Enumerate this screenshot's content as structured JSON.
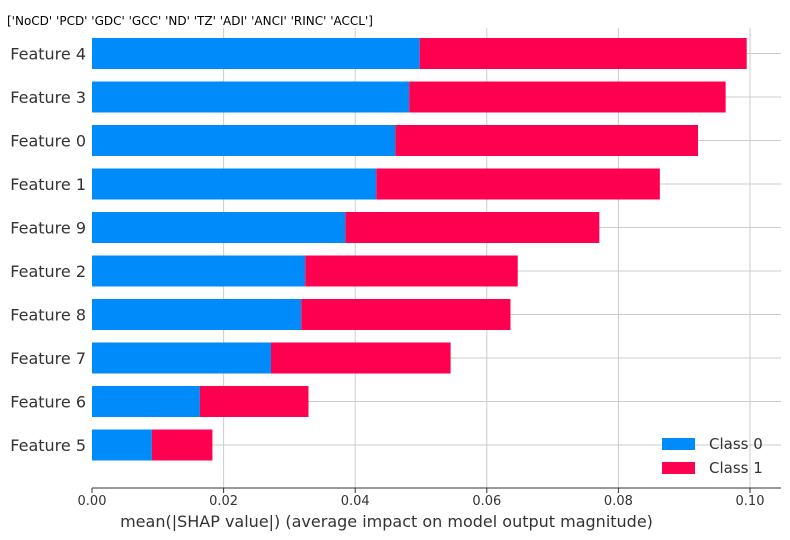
{
  "title": "['NoCD' 'PCD' 'GDC' 'GCC' 'ND' 'TZ' 'ADI' 'ANCI' 'RINC' 'ACCL']",
  "colors": {
    "class0": "#008bfb",
    "class1": "#ff0051",
    "axis": "#333333",
    "grid": "#cccccc"
  },
  "chart_data": {
    "type": "bar",
    "orientation": "horizontal",
    "stacked": true,
    "categories": [
      "Feature 4",
      "Feature 3",
      "Feature 0",
      "Feature 1",
      "Feature 9",
      "Feature 2",
      "Feature 8",
      "Feature 7",
      "Feature 6",
      "Feature 5"
    ],
    "series": [
      {
        "name": "Class 0",
        "values": [
          0.0498,
          0.0482,
          0.0461,
          0.0432,
          0.0385,
          0.0324,
          0.0318,
          0.0272,
          0.0164,
          0.0091
        ]
      },
      {
        "name": "Class 1",
        "values": [
          0.0497,
          0.0481,
          0.046,
          0.0431,
          0.0386,
          0.0323,
          0.0318,
          0.0273,
          0.0165,
          0.0092
        ]
      }
    ],
    "xlabel": "mean(|SHAP value|) (average impact on model output magnitude)",
    "ylabel": "",
    "xlim": [
      0.0,
      0.1
    ],
    "xticks": [
      "0.00",
      "0.02",
      "0.04",
      "0.06",
      "0.08",
      "0.10"
    ],
    "xtick_values": [
      0.0,
      0.02,
      0.04,
      0.06,
      0.08,
      0.1
    ],
    "grid": "horizontal and vertical dashed-light",
    "legend_position": "bottom-right"
  }
}
